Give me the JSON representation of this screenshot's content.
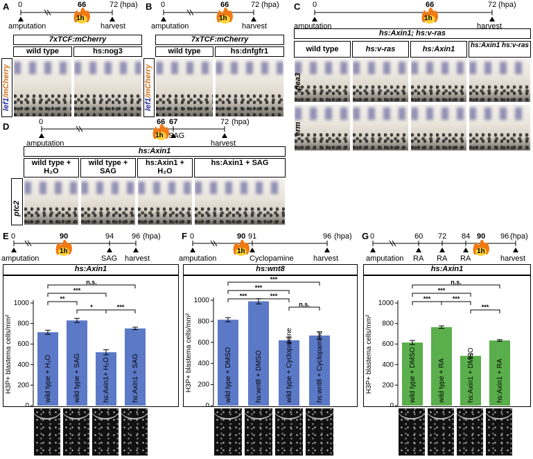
{
  "panels": {
    "A": {
      "letter": "A",
      "timeline": {
        "start": "0",
        "mid": "66",
        "end": "72",
        "unit": "(hpa)",
        "start_label": "amputation",
        "end_label": "harvest",
        "flame": "1h"
      },
      "group_title": "7xTCF:mCherry",
      "columns": [
        "wild type",
        "hs:nog3"
      ],
      "row_label_a": "lef1",
      "row_label_b": "/mCherry"
    },
    "B": {
      "letter": "B",
      "timeline": {
        "start": "0",
        "mid": "66",
        "end": "72",
        "unit": "(hpa)",
        "start_label": "amputation",
        "end_label": "harvest",
        "flame": "1h"
      },
      "group_title": "7xTCF:mCherry",
      "columns": [
        "wild type",
        "hs:dnfgfr1"
      ],
      "row_label_a": "lef1",
      "row_label_b": "/mCherry"
    },
    "C": {
      "letter": "C",
      "timeline": {
        "start": "0",
        "mid": "66",
        "end": "72",
        "unit": "(hpa)",
        "start_label": "amputation",
        "end_label": "harvest",
        "flame": "1h"
      },
      "group_title": "hs:Axin1; hs:v-ras",
      "columns": [
        "wild type",
        "hs:v-ras",
        "hs:Axin1",
        "hs:Axin1 hs:v-ras"
      ],
      "row_labels": [
        "pea3",
        "erm"
      ]
    },
    "D": {
      "letter": "D",
      "timeline": {
        "start": "0",
        "mid": "66",
        "mid2": "67",
        "end": "72",
        "unit": "(hpa)",
        "start_label": "amputation",
        "mid2_label": "SAG",
        "end_label": "harvest",
        "flame": "1h"
      },
      "group_title": "hs:Axin1",
      "columns": [
        "wild type + H₂O",
        "wild type + SAG",
        "hs:Axin1 + H₂O",
        "hs:Axin1 + SAG"
      ],
      "row_label": "ptc2"
    },
    "E": {
      "letter": "E",
      "timeline": {
        "start": "0",
        "t1": "90",
        "t2": "94",
        "end": "96",
        "unit": "(hpa)",
        "start_label": "amputation",
        "t2_label": "SAG",
        "end_label": "harvest",
        "flame": "1h"
      },
      "group_title": "hs:Axin1",
      "ylabel": "H3P+ blastema cells/mm²",
      "yticks": [
        "0",
        "200",
        "400",
        "600",
        "800",
        "1000"
      ],
      "bar_labels": [
        "wild type + H₂O",
        "wild type + SAG",
        "hs:Axin1+ H₂O",
        "hs:Axin1 + SAG"
      ],
      "significance": [
        "n.s.",
        "***",
        "**",
        "*",
        "***"
      ]
    },
    "F": {
      "letter": "F",
      "timeline": {
        "start": "0",
        "t1": "90",
        "t2": "91",
        "end": "96",
        "unit": "(hpa)",
        "start_label": "amputation",
        "t2_label": "Cyclopamine",
        "end_label": "harvest",
        "flame": "1h"
      },
      "group_title": "hs:wnt8",
      "ylabel": "H3P+ blastema cells/mm²",
      "yticks": [
        "0",
        "200",
        "400",
        "600",
        "800",
        "1000"
      ],
      "bar_labels": [
        "wild type + DMSO",
        "hs:wnt8 + DMSO",
        "wild type + Cyclopamine",
        "hs:wnt8 + Cyclopamine"
      ],
      "significance": [
        "***",
        "***",
        "***",
        "***",
        "n.s."
      ]
    },
    "G": {
      "letter": "G",
      "timeline": {
        "start": "0",
        "t1": "60",
        "t2": "72",
        "t3": "84",
        "t4": "90",
        "end": "96",
        "unit": "(hpa)",
        "start_label": "amputation",
        "t1_label": "RA",
        "t2_label": "RA",
        "t3_label": "RA",
        "end_label": "harvest",
        "flame": "1h"
      },
      "group_title": "hs:Axin1",
      "ylabel": "H3P+ blastema cells/mm²",
      "yticks": [
        "0",
        "200",
        "400",
        "600",
        "800",
        "1000"
      ],
      "bar_labels": [
        "wild type + DMSO",
        "wild type + RA",
        "hs:Axin1 + DMSO",
        "hs:Axin1 + RA"
      ],
      "significance": [
        "n.s.",
        "***",
        "***",
        "***",
        "***"
      ]
    }
  },
  "chart_data": [
    {
      "type": "bar",
      "categories": [
        "wild type + H2O",
        "wild type + SAG",
        "hs:Axin1+ H2O",
        "hs:Axin1 + SAG"
      ],
      "values": [
        715,
        830,
        520,
        752
      ],
      "errors": [
        20,
        20,
        25,
        12
      ],
      "color": "#5b79c6",
      "ylabel": "H3P+ blastema cells/mm²",
      "ylim": [
        0,
        1000
      ]
    },
    {
      "type": "bar",
      "categories": [
        "wild type + DMSO",
        "hs:wnt8 + DMSO",
        "wild type + Cyclopamine",
        "hs:wnt8 + Cyclopamine"
      ],
      "values": [
        815,
        990,
        620,
        665
      ],
      "errors": [
        20,
        25,
        25,
        35
      ],
      "color": "#5b79c6",
      "ylabel": "H3P+ blastema cells/mm²",
      "ylim": [
        0,
        1000
      ]
    },
    {
      "type": "bar",
      "categories": [
        "wild type + DMSO",
        "wild type + RA",
        "hs:Axin1 + DMSO",
        "hs:Axin1 + RA"
      ],
      "values": [
        615,
        765,
        485,
        635
      ],
      "errors": [
        20,
        12,
        20,
        8
      ],
      "color": "#5aae4b",
      "ylabel": "H3P+ blastema cells/mm²",
      "ylim": [
        0,
        1000
      ]
    }
  ]
}
